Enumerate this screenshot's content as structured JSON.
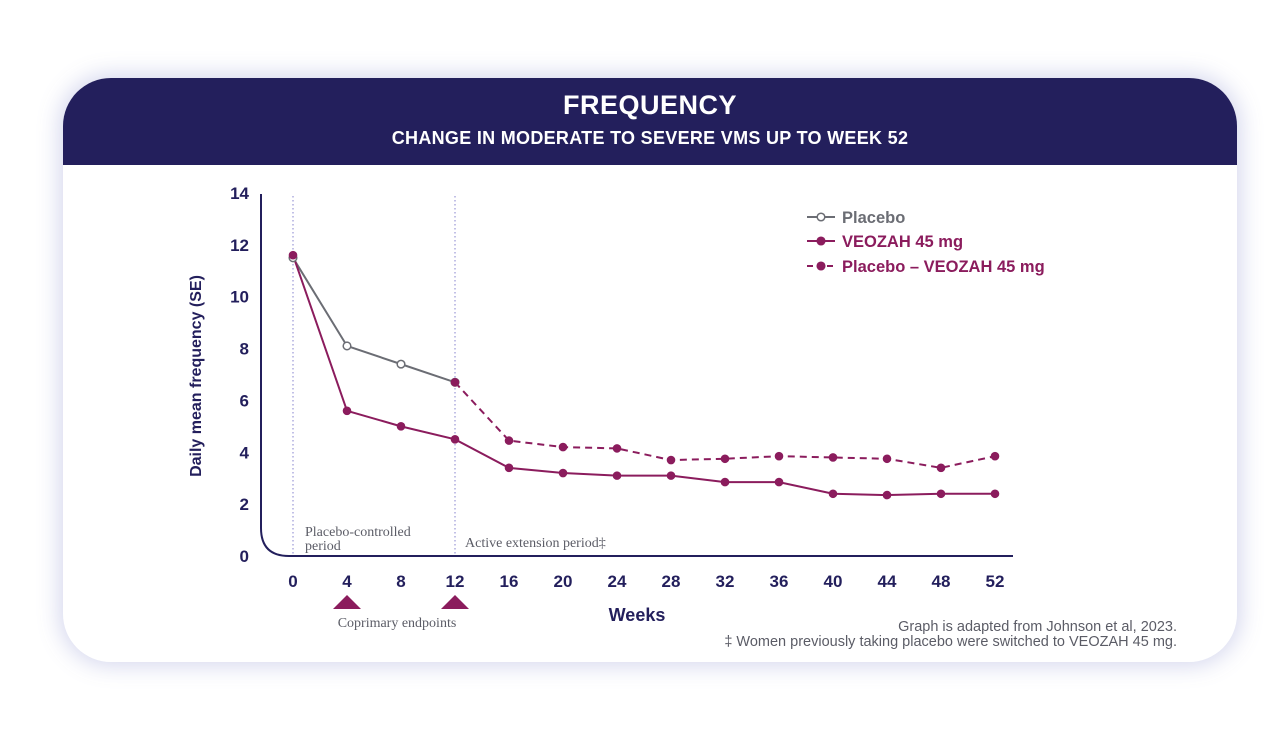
{
  "header": {
    "title": "FREQUENCY",
    "subtitle": "CHANGE IN MODERATE TO SEVERE VMS UP TO WEEK 52"
  },
  "chart_data": {
    "type": "line",
    "title": "FREQUENCY",
    "subtitle": "CHANGE IN MODERATE TO SEVERE VMS UP TO WEEK 52",
    "xlabel": "Weeks",
    "ylabel": "Daily mean frequency (SE)",
    "x_ticks": [
      0,
      4,
      8,
      12,
      16,
      20,
      24,
      28,
      32,
      36,
      40,
      44,
      48,
      52
    ],
    "y_ticks": [
      0,
      2,
      4,
      6,
      8,
      10,
      12,
      14
    ],
    "xlim": [
      0,
      52
    ],
    "ylim": [
      0,
      14
    ],
    "legend_position": "top-right",
    "series": [
      {
        "name": "Placebo",
        "color": "#6b6d74",
        "line_style": "solid",
        "marker": "open-circle",
        "x": [
          0,
          4,
          8,
          12
        ],
        "y": [
          11.5,
          8.1,
          7.4,
          6.7
        ]
      },
      {
        "name": "VEOZAH 45 mg",
        "color": "#8b1c5d",
        "line_style": "solid",
        "marker": "filled-circle",
        "x": [
          0,
          4,
          8,
          12,
          16,
          20,
          24,
          28,
          32,
          36,
          40,
          44,
          48,
          52
        ],
        "y": [
          11.6,
          5.6,
          5.0,
          4.5,
          3.4,
          3.2,
          3.1,
          3.1,
          2.85,
          2.85,
          2.4,
          2.35,
          2.4,
          2.4
        ]
      },
      {
        "name": "Placebo – VEOZAH 45 mg",
        "color": "#8b1c5d",
        "line_style": "dashed",
        "marker": "filled-circle",
        "x": [
          12,
          16,
          20,
          24,
          28,
          32,
          36,
          40,
          44,
          48,
          52
        ],
        "y": [
          6.7,
          4.45,
          4.2,
          4.15,
          3.7,
          3.75,
          3.85,
          3.8,
          3.75,
          3.4,
          3.85
        ]
      }
    ],
    "period_lines": [
      0,
      12
    ],
    "period_labels": [
      {
        "text_line1": "Placebo-controlled",
        "text_line2": "period"
      },
      {
        "text_line1": "Active extension period‡"
      }
    ],
    "endpoint_markers": {
      "weeks": [
        4,
        12
      ],
      "label": "Coprimary endpoints",
      "color": "#8b1c5d"
    }
  },
  "footnotes": {
    "source": "Graph is adapted from Johnson et al, 2023.",
    "note": "‡ Women previously taking placebo were switched to VEOZAH 45 mg."
  }
}
